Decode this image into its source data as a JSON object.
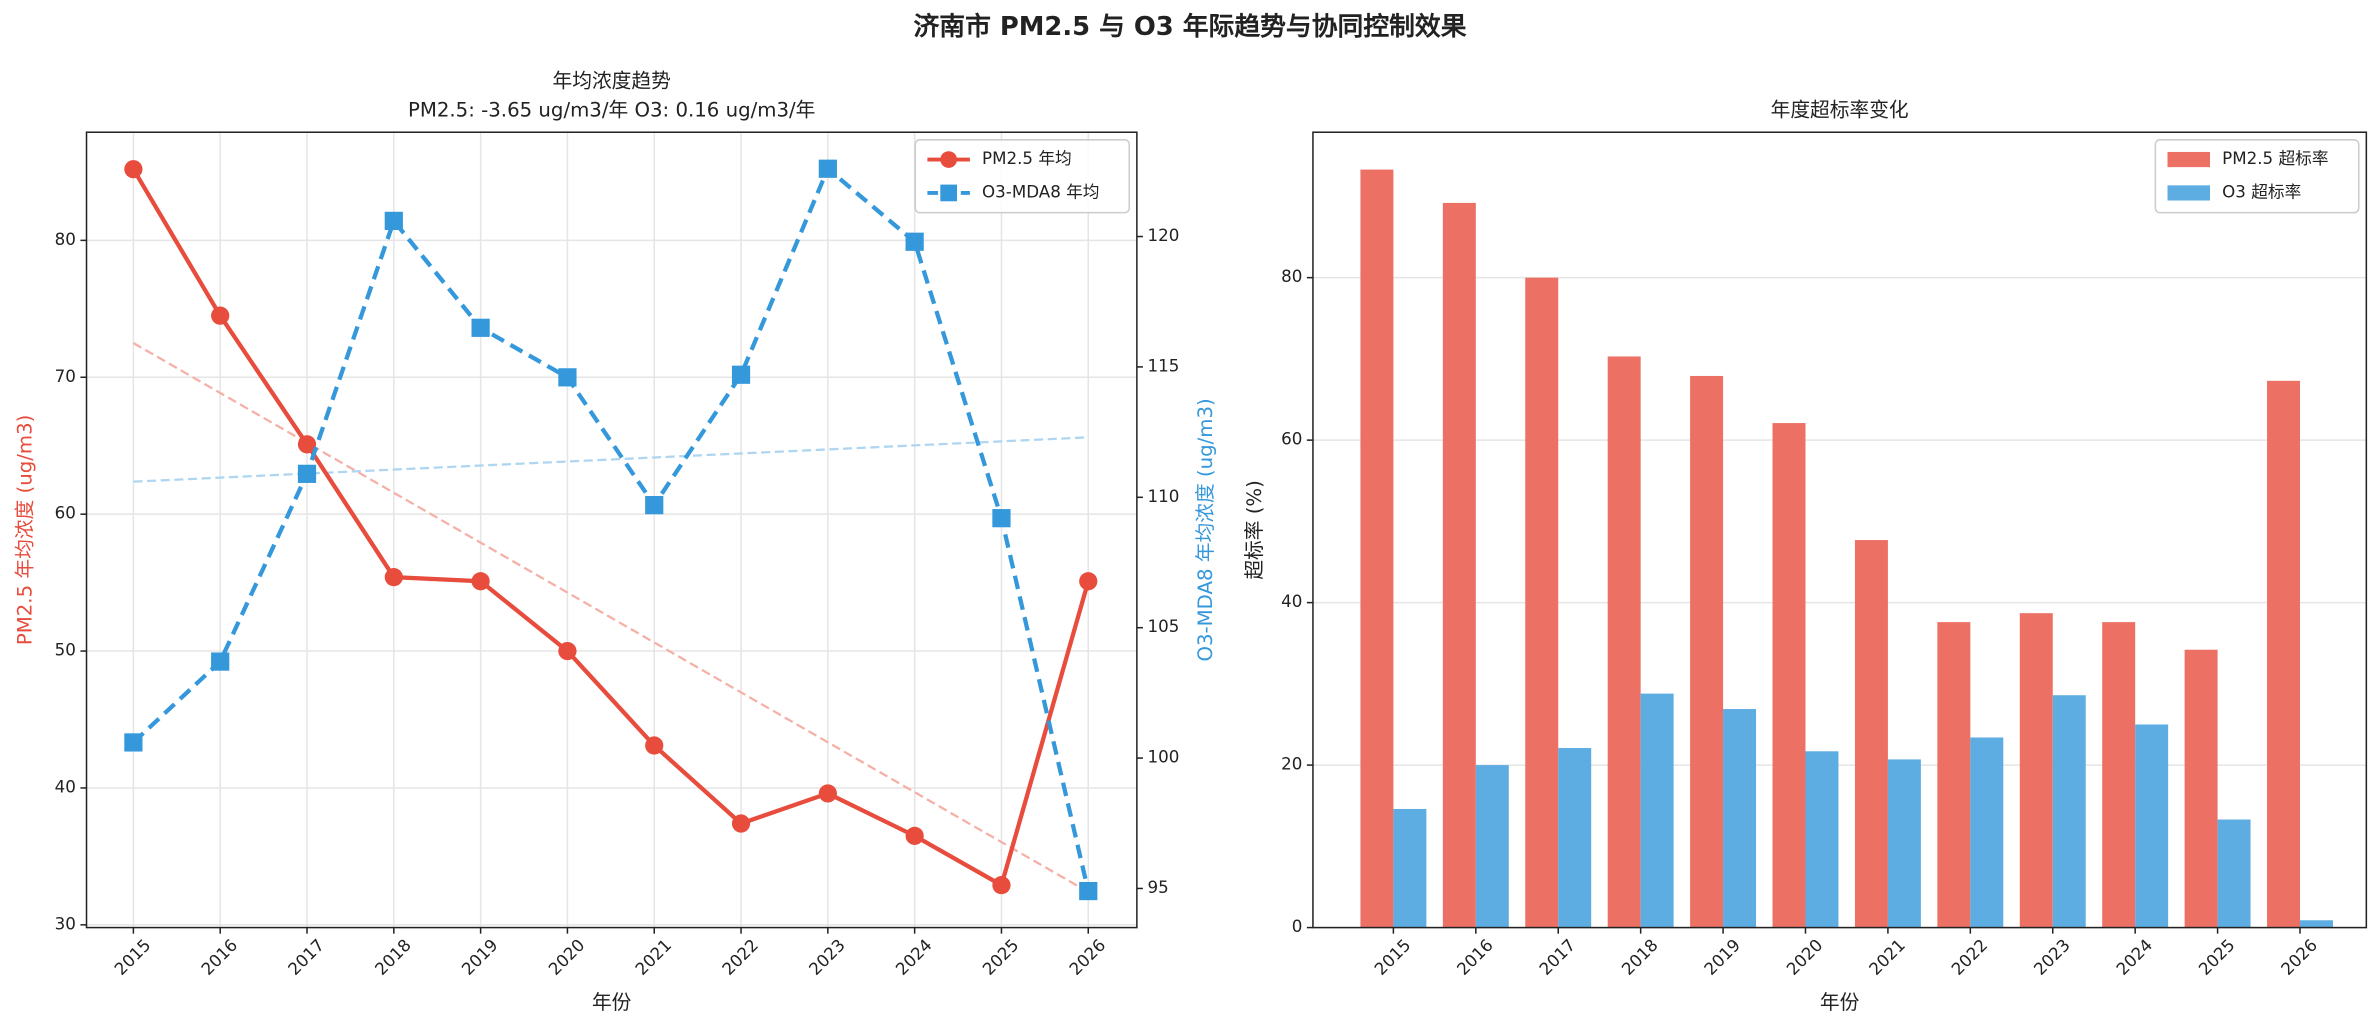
{
  "title": "济南市 PM2.5 与 O3 年际趋势与协同控制效果",
  "chart_data": [
    {
      "type": "line",
      "title": "年均浓度趋势",
      "subtitle": "PM2.5: -3.65 ug/m3/年  O3: 0.16 ug/m3/年",
      "xlabel": "年份",
      "ylabel": "PM2.5 年均浓度 (ug/m3)",
      "y2label": "O3-MDA8 年均浓度 (ug/m3)",
      "x": [
        2015,
        2016,
        2017,
        2018,
        2019,
        2020,
        2021,
        2022,
        2023,
        2024,
        2025,
        2026
      ],
      "xlim": [
        2014.46,
        2026.56
      ],
      "xticks": [
        2015,
        2016,
        2017,
        2018,
        2019,
        2020,
        2021,
        2022,
        2023,
        2024,
        2025,
        2026
      ],
      "ylim": [
        29.8,
        87.9
      ],
      "yticks": [
        30,
        40,
        50,
        60,
        70,
        80
      ],
      "y2lim": [
        93.5,
        124.0
      ],
      "y2ticks": [
        95,
        100,
        105,
        110,
        115,
        120
      ],
      "grid": true,
      "legend": "upper right",
      "series": [
        {
          "name": "PM2.5 年均",
          "color": "#e74c3c",
          "trend_color": "#f5b0a8",
          "marker": "circle",
          "dashed": false,
          "values": [
            85.2,
            74.5,
            65.1,
            55.4,
            55.1,
            50.0,
            43.1,
            37.4,
            39.6,
            36.5,
            32.9,
            55.1
          ],
          "trend": [
            72.5,
            32.4
          ]
        },
        {
          "name": "O3-MDA8 年均",
          "color": "#3498db",
          "trend_color": "#aed6f1",
          "marker": "square",
          "dashed": true,
          "axis": "y2",
          "values": [
            100.6,
            103.7,
            110.9,
            120.6,
            116.5,
            114.6,
            109.7,
            114.7,
            122.6,
            119.8,
            109.2,
            94.9
          ],
          "trend": [
            110.6,
            112.3
          ]
        }
      ]
    },
    {
      "type": "bar",
      "title": "年度超标率变化",
      "xlabel": "年份",
      "ylabel": "超标率 (%)",
      "categories": [
        "2015",
        "2016",
        "2017",
        "2018",
        "2019",
        "2020",
        "2021",
        "2022",
        "2023",
        "2024",
        "2025",
        "2026"
      ],
      "ylim": [
        0,
        97.9
      ],
      "yticks": [
        0,
        20,
        40,
        60,
        80
      ],
      "grid": true,
      "legend": "upper right",
      "series": [
        {
          "name": "PM2.5 超标率",
          "color": "#ec7063",
          "values": [
            93.3,
            89.2,
            80.0,
            70.3,
            67.9,
            62.1,
            47.7,
            37.6,
            38.7,
            37.6,
            34.2,
            67.3
          ]
        },
        {
          "name": "O3 超标率",
          "color": "#5dade2",
          "values": [
            14.6,
            20.0,
            22.1,
            28.8,
            26.9,
            21.7,
            20.7,
            23.4,
            28.6,
            25.0,
            13.3,
            0.9
          ]
        }
      ]
    }
  ]
}
